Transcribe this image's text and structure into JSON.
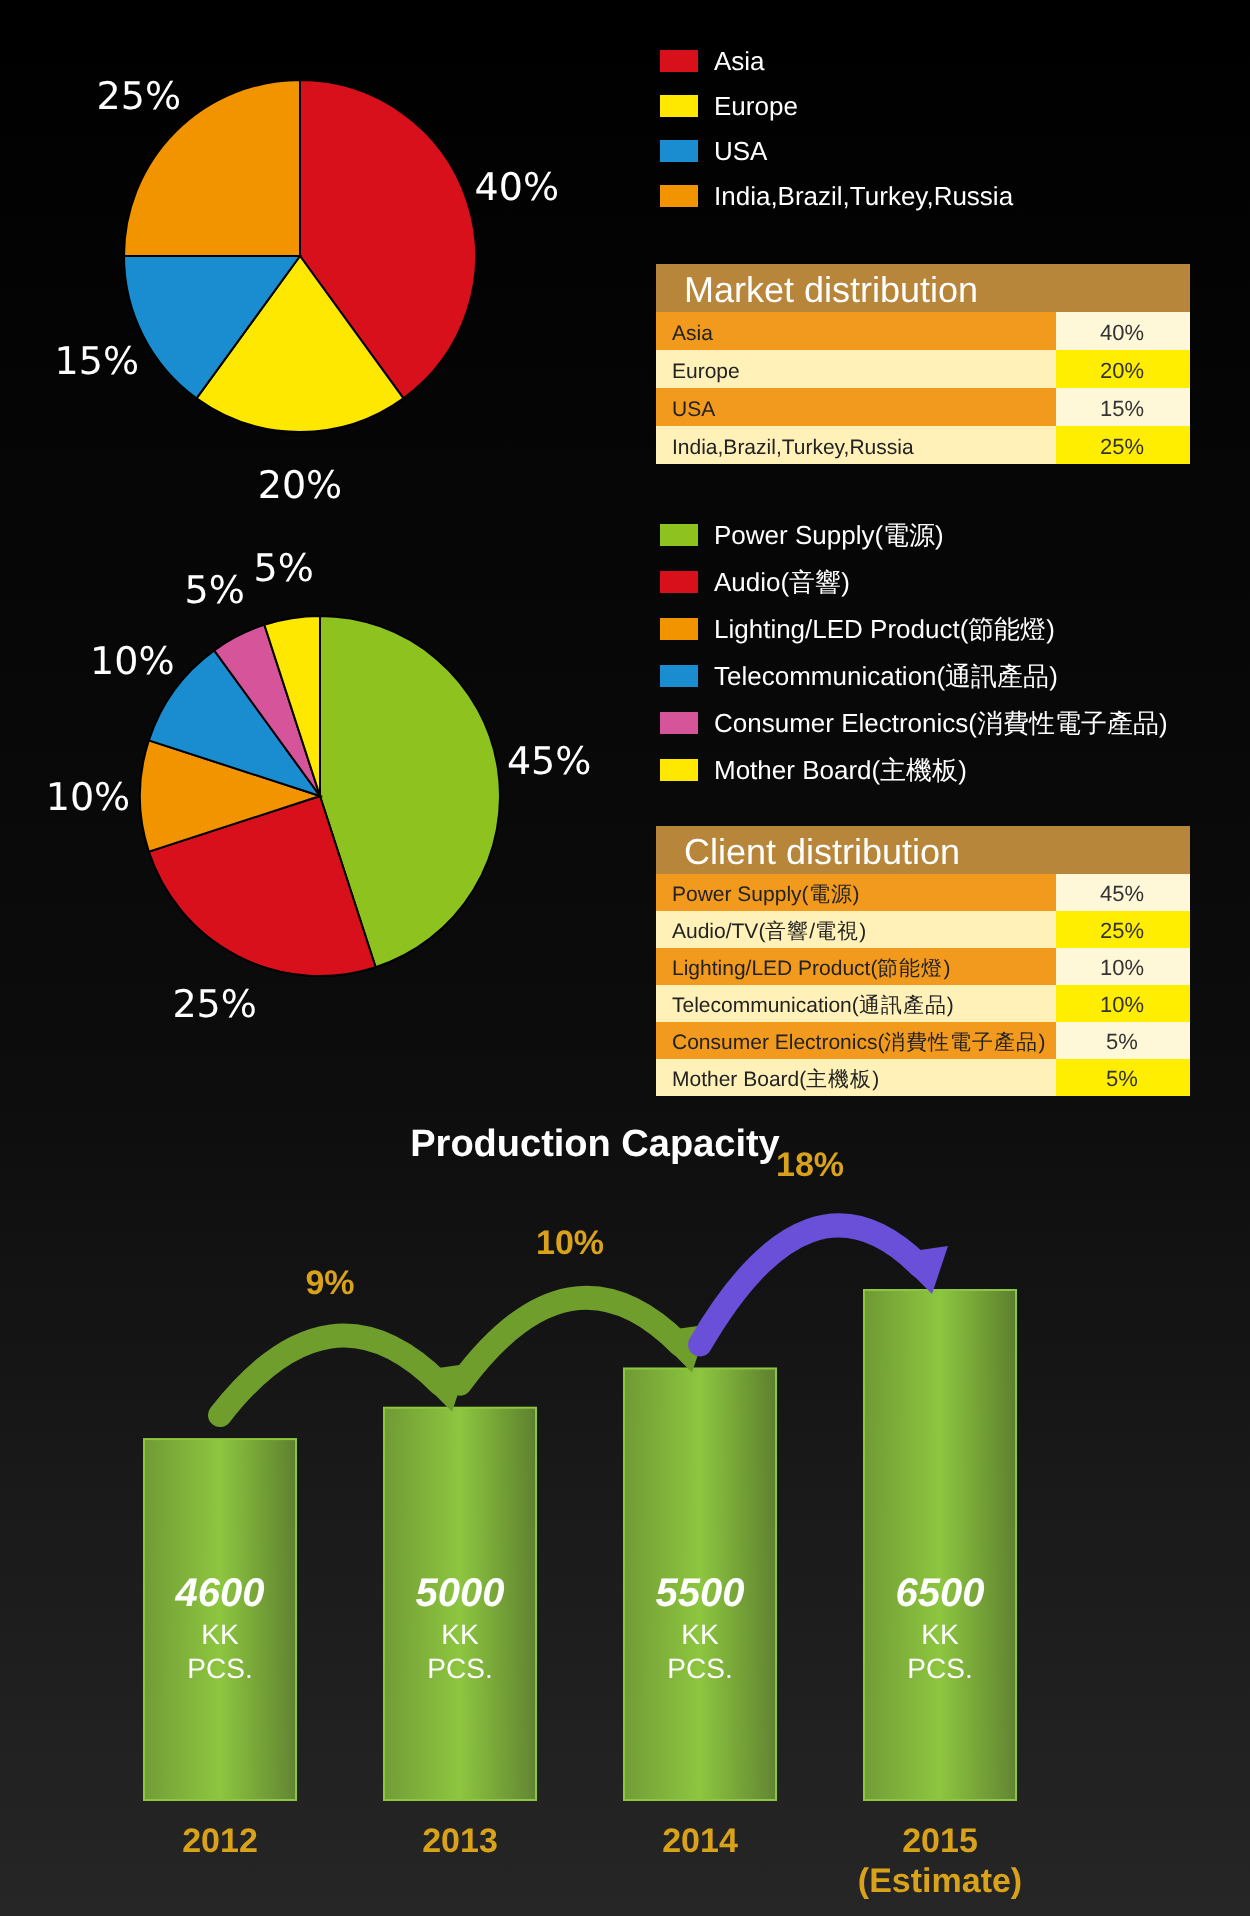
{
  "chart_data": [
    {
      "type": "pie",
      "title": "Market distribution",
      "categories": [
        "Asia",
        "Europe",
        "USA",
        "India,Brazil,Turkey,Russia"
      ],
      "values": [
        40,
        20,
        15,
        25
      ],
      "colors": [
        "#d7101c",
        "#ffe800",
        "#1a8cd0",
        "#f29300"
      ],
      "value_labels": [
        "40%",
        "20%",
        "15%",
        "25%"
      ],
      "legend": "right"
    },
    {
      "type": "pie",
      "title": "Client distribution",
      "categories": [
        "Power Supply(電源)",
        "Audio(音響)",
        "Lighting/LED Product(節能燈)",
        "Telecommunication(通訊產品)",
        "Consumer Electronics(消費性電子產品)",
        "Mother Board(主機板)"
      ],
      "values": [
        45,
        25,
        10,
        10,
        5,
        5
      ],
      "colors": [
        "#8dc21f",
        "#d7101c",
        "#f29300",
        "#1a8cd0",
        "#d6559a",
        "#ffe800"
      ],
      "value_labels": [
        "45%",
        "25%",
        "10%",
        "10%",
        "5%",
        "5%"
      ],
      "legend": "right",
      "annotations": [
        "Power Supply(電源)",
        "Audio/TV(音響/電視)",
        "Lighting/LED Product(節能燈)",
        "Telecommunication(通訊產品)",
        "Consumer Electronics(消費性電子產品)",
        "Mother Board(主機板)"
      ]
    },
    {
      "type": "bar",
      "title": "Production Capacity",
      "categories": [
        "2012",
        "2013",
        "2014",
        "2015\n(Estimate)"
      ],
      "values": [
        4600,
        5000,
        5500,
        6500
      ],
      "color": "#8dc63f",
      "value_labels": [
        "4600 KK PCS.",
        "5000 KK PCS.",
        "5500 KK PCS.",
        "6500 KK PCS."
      ],
      "annotations": [
        "9%",
        "10%",
        "18%"
      ]
    }
  ]
}
